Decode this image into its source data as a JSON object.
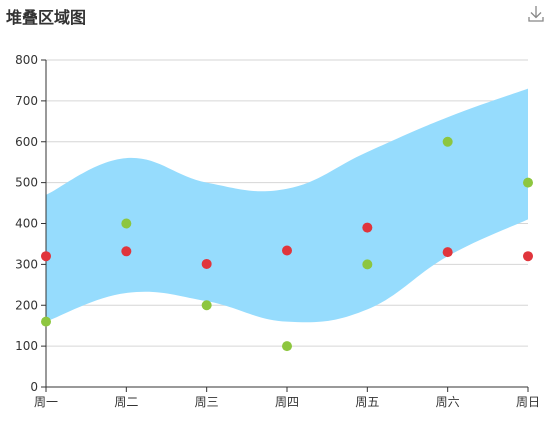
{
  "chart_data": {
    "type": "scatter",
    "title": "堆叠区域图",
    "categories": [
      "周一",
      "周二",
      "周三",
      "周四",
      "周五",
      "周六",
      "周日"
    ],
    "ylim": [
      0,
      800
    ],
    "yticks": [
      0,
      100,
      200,
      300,
      400,
      500,
      600,
      700,
      800
    ],
    "grid": true,
    "band": {
      "lower": [
        160,
        230,
        210,
        160,
        190,
        320,
        410
      ],
      "upper": [
        470,
        560,
        500,
        485,
        575,
        660,
        730
      ],
      "color": "#96dcfd"
    },
    "series": [
      {
        "values": [
          320,
          332,
          301,
          334,
          390,
          330,
          320
        ],
        "color": "#e0353c"
      },
      {
        "values": [
          160,
          400,
          200,
          100,
          300,
          600,
          500
        ],
        "color": "#8dc63f"
      }
    ]
  },
  "toolbar": {
    "download_icon": "download-icon"
  }
}
